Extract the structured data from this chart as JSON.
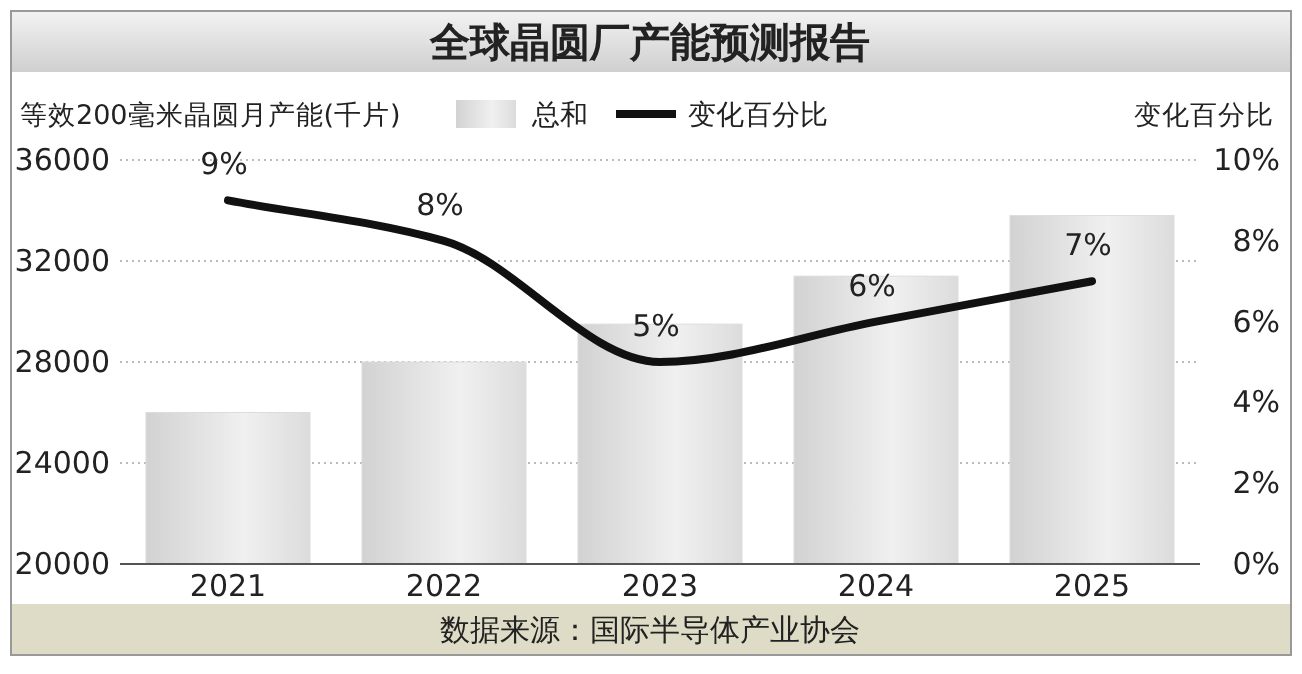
{
  "chart_data": {
    "type": "bar",
    "title": "全球晶圆厂产能预测报告",
    "ylabel": "等效200毫米晶圆月产能(千片)",
    "y2label": "变化百分比",
    "categories": [
      "2021",
      "2022",
      "2023",
      "2024",
      "2025"
    ],
    "series": [
      {
        "name": "总和",
        "color": "#dcdcdc",
        "values": [
          26000,
          28000,
          29500,
          31400,
          33800
        ]
      },
      {
        "name": "变化百分比",
        "type": "line",
        "axis": "y2",
        "color": "#111111",
        "values": [
          9,
          8,
          5,
          6,
          7
        ],
        "value_labels": [
          "9%",
          "8%",
          "5%",
          "6%",
          "7%"
        ]
      }
    ],
    "ylim": [
      20000,
      36000
    ],
    "yticks": [
      20000,
      24000,
      28000,
      32000,
      36000
    ],
    "y2lim": [
      0,
      10
    ],
    "y2ticks": [
      {
        "value": 0,
        "label": "0%"
      },
      {
        "value": 2,
        "label": "2%"
      },
      {
        "value": 4,
        "label": "4%"
      },
      {
        "value": 6,
        "label": "6%"
      },
      {
        "value": 8,
        "label": "8%"
      },
      {
        "value": 10,
        "label": "10%"
      }
    ],
    "grid": "y",
    "legend": "top",
    "marker": "none",
    "line_style": "solid",
    "annotations": [
      "数据来源：国际半导体产业协会"
    ]
  }
}
